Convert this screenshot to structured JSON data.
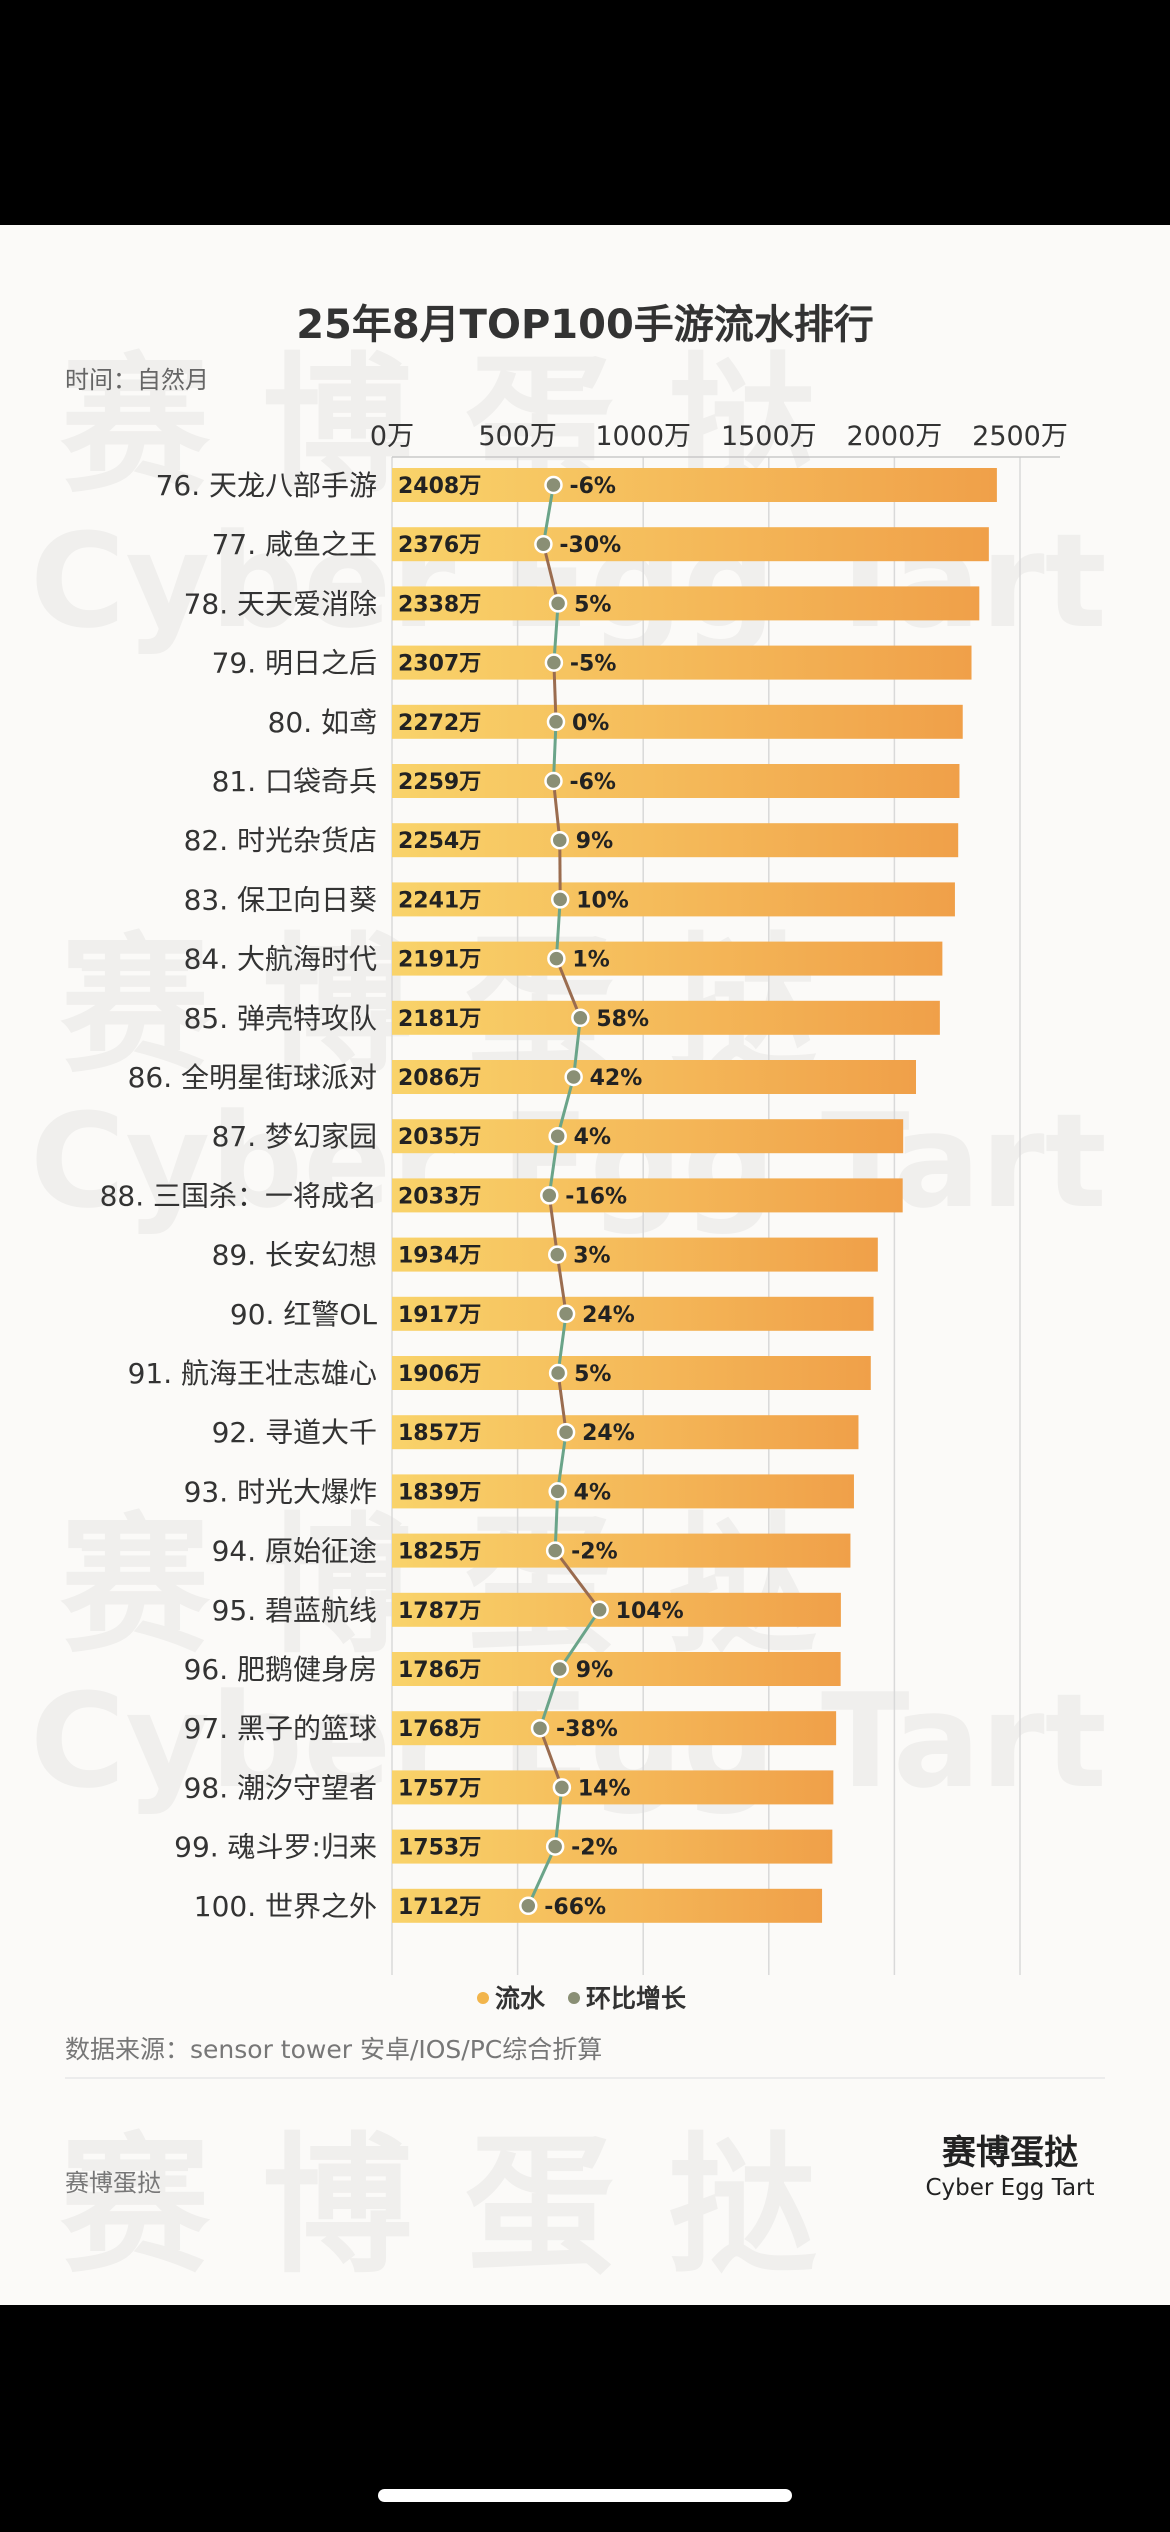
{
  "page": {
    "title": "25年8月TOP100手游流水排行",
    "subtitle": "时间：自然月",
    "source": "数据来源：sensor tower 安卓/IOS/PC综合折算",
    "footer_left": "赛博蛋挞",
    "brand_cn": "赛博蛋挞",
    "brand_en": "Cyber Egg Tart"
  },
  "watermark": {
    "cn": "赛 博 蛋 挞",
    "en": "Cyber Egg Tart"
  },
  "colors": {
    "bar_start": "#f9d36a",
    "bar_end": "#f0a049",
    "line": "#8f9a7f",
    "line_pos": "#9a6c4f",
    "line_neg": "#6aa489",
    "dot": "#8a8f75",
    "legend_bar": "#f2b54c",
    "legend_line": "#8a8f75"
  },
  "chart_data": {
    "type": "bar",
    "orientation": "horizontal",
    "xlim": [
      0,
      2800
    ],
    "ticks": [
      "0万",
      "500万",
      "1000万",
      "1500万",
      "2000万",
      "2500万"
    ],
    "tick_values": [
      0,
      500,
      1000,
      1500,
      2000,
      2500
    ],
    "categories": [
      "76. 天龙八部手游",
      "77. 咸鱼之王",
      "78. 天天爱消除",
      "79. 明日之后",
      "80. 如鸢",
      "81. 口袋奇兵",
      "82. 时光杂货店",
      "83. 保卫向日葵",
      "84. 大航海时代",
      "85. 弹壳特攻队",
      "86. 全明星街球派对",
      "87. 梦幻家园",
      "88. 三国杀：一将成名",
      "89. 长安幻想",
      "90. 红警OL",
      "91. 航海王壮志雄心",
      "92. 寻道大千",
      "93. 时光大爆炸",
      "94. 原始征途",
      "95. 碧蓝航线",
      "96. 肥鹅健身房",
      "97. 黑子的篮球",
      "98. 潮汐守望者",
      "99. 魂斗罗:归来",
      "100. 世界之外"
    ],
    "series": [
      {
        "name": "流水",
        "values": [
          2408,
          2376,
          2338,
          2307,
          2272,
          2259,
          2254,
          2241,
          2191,
          2181,
          2086,
          2035,
          2033,
          1934,
          1917,
          1906,
          1857,
          1839,
          1825,
          1787,
          1786,
          1768,
          1757,
          1753,
          1712
        ],
        "labels": [
          "2408万",
          "2376万",
          "2338万",
          "2307万",
          "2272万",
          "2259万",
          "2254万",
          "2241万",
          "2191万",
          "2181万",
          "2086万",
          "2035万",
          "2033万",
          "1934万",
          "1917万",
          "1906万",
          "1857万",
          "1839万",
          "1825万",
          "1787万",
          "1786万",
          "1768万",
          "1757万",
          "1753万",
          "1712万"
        ]
      },
      {
        "name": "环比增长",
        "values": [
          -6,
          -30,
          5,
          -5,
          0,
          -6,
          9,
          10,
          1,
          58,
          42,
          4,
          -16,
          3,
          24,
          5,
          24,
          4,
          -2,
          104,
          9,
          -38,
          14,
          -2,
          -66
        ],
        "labels": [
          "-6%",
          "-30%",
          "5%",
          "-5%",
          "0%",
          "-6%",
          "9%",
          "10%",
          "1%",
          "58%",
          "42%",
          "4%",
          "-16%",
          "3%",
          "24%",
          "5%",
          "24%",
          "4%",
          "-2%",
          "104%",
          "9%",
          "-38%",
          "14%",
          "-2%",
          "-66%"
        ]
      }
    ],
    "legend": [
      "流水",
      "环比增长"
    ],
    "legend_position": "bottom"
  }
}
